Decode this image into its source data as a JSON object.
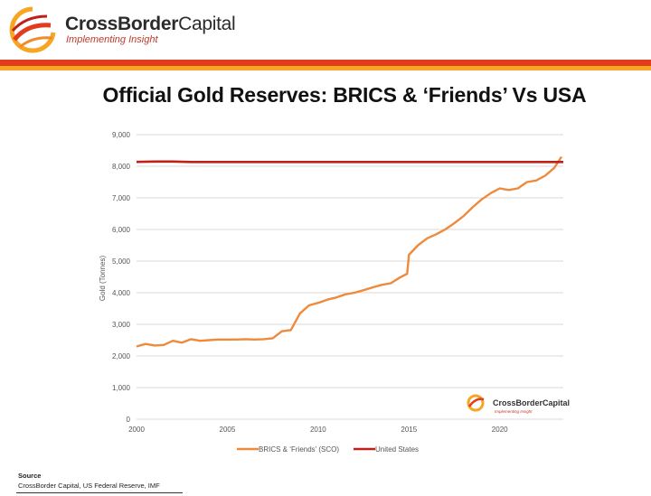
{
  "header": {
    "brand_bold": "CrossBorder",
    "brand_light": "Capital",
    "tagline": "Implementing Insight",
    "accent_red": "#e23b1e",
    "accent_orange": "#f6a623"
  },
  "title": "Official Gold Reserves: BRICS & ‘Friends’ Vs USA",
  "watermark": {
    "brand": "CrossBorderCapital",
    "tagline": "Implementing Insight"
  },
  "source": {
    "label": "Source",
    "text": "CrossBorder Capital, US Federal Reserve, IMF"
  },
  "chart_data": {
    "type": "line",
    "title": "Official Gold Reserves: BRICS & ‘Friends’ Vs USA",
    "xlabel": "",
    "ylabel": "Gold (Tonnes)",
    "xlim": [
      2000,
      2023.5
    ],
    "ylim": [
      0,
      9000
    ],
    "yticks": [
      0,
      1000,
      2000,
      3000,
      4000,
      5000,
      6000,
      7000,
      8000,
      9000
    ],
    "ytick_labels": [
      "0",
      "1,000",
      "2,000",
      "3,000",
      "4,000",
      "5,000",
      "6,000",
      "7,000",
      "8,000",
      "9,000"
    ],
    "xticks": [
      2000,
      2005,
      2010,
      2015,
      2020
    ],
    "xtick_labels": [
      "2000",
      "2005",
      "2010",
      "2015",
      "2020"
    ],
    "grid": "horizontal",
    "legend_position": "bottom",
    "series": [
      {
        "name": "BRICS & ‘Friends’ (SCO)",
        "color": "#ee8a3c",
        "x": [
          2000,
          2000.5,
          2001,
          2001.5,
          2002,
          2002.5,
          2003,
          2003.5,
          2004,
          2004.5,
          2005,
          2005.5,
          2006,
          2006.5,
          2007,
          2007.5,
          2008,
          2008.5,
          2009,
          2009.5,
          2010,
          2010.5,
          2011,
          2011.5,
          2012,
          2012.5,
          2013,
          2013.5,
          2014,
          2014.5,
          2014.9,
          2015,
          2015.5,
          2016,
          2016.5,
          2017,
          2017.5,
          2018,
          2018.5,
          2019,
          2019.5,
          2020,
          2020.5,
          2021,
          2021.5,
          2022,
          2022.5,
          2023,
          2023.4
        ],
        "values": [
          2300,
          2380,
          2330,
          2350,
          2480,
          2420,
          2530,
          2480,
          2500,
          2520,
          2520,
          2520,
          2530,
          2520,
          2530,
          2560,
          2780,
          2820,
          3350,
          3600,
          3680,
          3780,
          3850,
          3950,
          4000,
          4080,
          4170,
          4250,
          4300,
          4480,
          4600,
          5200,
          5500,
          5720,
          5850,
          6000,
          6200,
          6420,
          6700,
          6950,
          7150,
          7300,
          7250,
          7300,
          7500,
          7550,
          7700,
          7950,
          8300
        ]
      },
      {
        "name": "United States",
        "color": "#c0201a",
        "x": [
          2000,
          2001,
          2002,
          2003,
          2023.5
        ],
        "values": [
          8137,
          8149,
          8149,
          8135,
          8133
        ]
      }
    ]
  }
}
